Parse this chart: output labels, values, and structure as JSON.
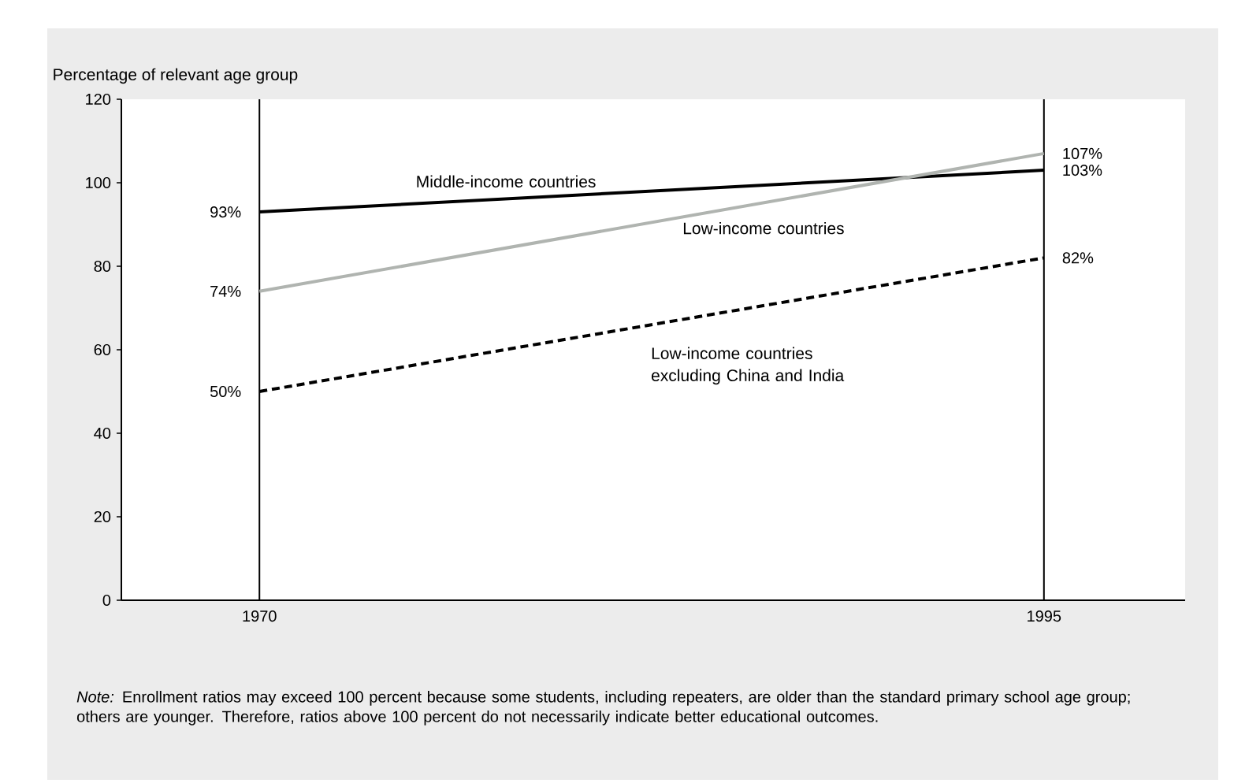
{
  "chart_data": {
    "type": "line",
    "ylabel": "Percentage of relevant age group",
    "x": [
      1970,
      1995
    ],
    "series": [
      {
        "name": "Middle-income countries",
        "color": "#000000",
        "values": [
          93,
          103
        ],
        "value_labels": [
          "93%",
          "103%"
        ],
        "line_style": "solid"
      },
      {
        "name": "Low-income countries",
        "color": "#b0b4b0",
        "values": [
          74,
          107
        ],
        "value_labels": [
          "74%",
          "107%"
        ],
        "line_style": "solid"
      },
      {
        "name": "Low-income countries excluding China and India",
        "color": "#000000",
        "values": [
          50,
          82
        ],
        "value_labels": [
          "50%",
          "82%"
        ],
        "line_style": "dashed"
      }
    ],
    "xlim": [
      1965.6,
      1999.5
    ],
    "xticks": [
      1970,
      1995
    ],
    "ylim": [
      0,
      120
    ],
    "yticks": [
      0,
      20,
      40,
      60,
      80,
      100,
      120
    ],
    "grid": "x",
    "marker": "none",
    "annotations": [
      "*Note:* Enrollment ratios may exceed 100 percent because some students, including repeaters, are older than the standard primary school age group; others are younger. Therefore, ratios above 100 percent do not necessarily indicate better educational outcomes."
    ]
  }
}
